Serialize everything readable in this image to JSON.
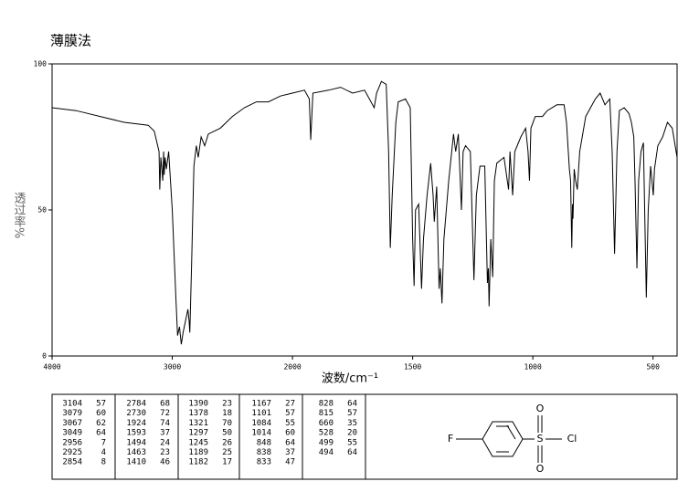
{
  "chart_data": {
    "type": "line",
    "title": "薄膜法",
    "y_label": "透过率%",
    "x_label": "波数/cm⁻¹",
    "xlim": [
      4000,
      400
    ],
    "x_scale_break": 2000,
    "ylim": [
      0,
      100
    ],
    "xticks": [
      4000,
      3000,
      2000,
      1500,
      1000,
      500
    ],
    "yticks": [
      0,
      50,
      100
    ],
    "color": "#000000",
    "x": [
      4000,
      3800,
      3600,
      3400,
      3200,
      3150,
      3110,
      3104,
      3095,
      3079,
      3072,
      3067,
      3060,
      3049,
      3030,
      3000,
      2970,
      2956,
      2940,
      2925,
      2910,
      2890,
      2870,
      2860,
      2854,
      2840,
      2820,
      2800,
      2784,
      2760,
      2730,
      2700,
      2600,
      2500,
      2400,
      2300,
      2200,
      2100,
      2000,
      1950,
      1930,
      1924,
      1915,
      1850,
      1800,
      1750,
      1700,
      1680,
      1660,
      1650,
      1630,
      1610,
      1600,
      1593,
      1585,
      1570,
      1560,
      1530,
      1510,
      1500,
      1494,
      1488,
      1475,
      1463,
      1455,
      1440,
      1425,
      1415,
      1410,
      1400,
      1390,
      1385,
      1378,
      1370,
      1350,
      1330,
      1321,
      1310,
      1297,
      1290,
      1280,
      1260,
      1245,
      1235,
      1220,
      1200,
      1189,
      1185,
      1182,
      1175,
      1167,
      1160,
      1150,
      1120,
      1101,
      1095,
      1084,
      1075,
      1050,
      1030,
      1020,
      1014,
      1008,
      990,
      960,
      940,
      900,
      870,
      860,
      848,
      843,
      838,
      835,
      833,
      828,
      822,
      815,
      805,
      780,
      740,
      720,
      700,
      680,
      670,
      660,
      650,
      640,
      620,
      600,
      590,
      580,
      575,
      567,
      560,
      550,
      540,
      528,
      520,
      510,
      499,
      494,
      480,
      460,
      440,
      420,
      400
    ],
    "values": [
      85,
      84,
      82,
      80,
      79,
      77,
      70,
      57,
      68,
      60,
      70,
      62,
      68,
      64,
      70,
      50,
      20,
      7,
      10,
      4,
      8,
      12,
      16,
      12,
      8,
      30,
      65,
      72,
      68,
      75,
      72,
      76,
      78,
      82,
      85,
      87,
      87,
      89,
      90,
      91,
      88,
      74,
      90,
      91,
      92,
      90,
      91,
      88,
      85,
      90,
      94,
      93,
      70,
      37,
      55,
      80,
      87,
      88,
      85,
      40,
      24,
      50,
      52,
      23,
      40,
      55,
      66,
      55,
      46,
      58,
      23,
      30,
      18,
      40,
      60,
      76,
      70,
      76,
      50,
      70,
      72,
      70,
      26,
      55,
      65,
      65,
      25,
      30,
      17,
      40,
      27,
      60,
      66,
      68,
      57,
      70,
      55,
      70,
      75,
      78,
      70,
      60,
      78,
      82,
      82,
      84,
      86,
      86,
      80,
      64,
      60,
      37,
      52,
      47,
      64,
      60,
      57,
      70,
      82,
      88,
      90,
      86,
      88,
      70,
      35,
      70,
      84,
      85,
      83,
      80,
      75,
      60,
      30,
      60,
      70,
      73,
      20,
      50,
      65,
      55,
      64,
      72,
      75,
      80,
      78,
      68
    ]
  },
  "peak_table": [
    [
      [
        3104,
        57
      ],
      [
        3079,
        60
      ],
      [
        3067,
        62
      ],
      [
        3049,
        64
      ],
      [
        2956,
        7
      ],
      [
        2925,
        4
      ],
      [
        2854,
        8
      ]
    ],
    [
      [
        2784,
        68
      ],
      [
        2730,
        72
      ],
      [
        1924,
        74
      ],
      [
        1593,
        37
      ],
      [
        1494,
        24
      ],
      [
        1463,
        23
      ],
      [
        1410,
        46
      ]
    ],
    [
      [
        1390,
        23
      ],
      [
        1378,
        18
      ],
      [
        1321,
        70
      ],
      [
        1297,
        50
      ],
      [
        1245,
        26
      ],
      [
        1189,
        25
      ],
      [
        1182,
        17
      ]
    ],
    [
      [
        1167,
        27
      ],
      [
        1101,
        57
      ],
      [
        1084,
        55
      ],
      [
        1014,
        60
      ],
      [
        848,
        64
      ],
      [
        838,
        37
      ],
      [
        833,
        47
      ]
    ],
    [
      [
        828,
        64
      ],
      [
        815,
        57
      ],
      [
        660,
        35
      ],
      [
        528,
        20
      ],
      [
        499,
        55
      ],
      [
        494,
        64
      ]
    ]
  ],
  "structure": {
    "atoms": [
      "F",
      "S",
      "O",
      "O",
      "Cl"
    ]
  }
}
